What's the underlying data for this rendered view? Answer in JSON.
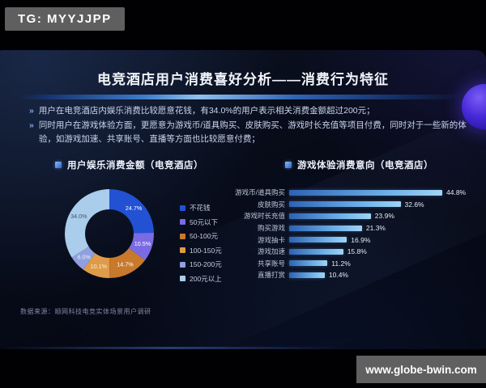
{
  "watermarks": {
    "tg": "TG: MYYJJPP",
    "site": "www.globe-bwin.com"
  },
  "header": {
    "title": "电竞酒店用户消费喜好分析——消费行为特征"
  },
  "bullets": {
    "marker": "»",
    "items": [
      "用户在电竞酒店内娱乐消费比较愿意花钱，有34.0%的用户表示相关消费金额超过200元；",
      "同时用户在游戏体验方面，更愿意为游戏币/道具购买、皮肤购买、游戏时长充值等项目付费，同时对于一些新的体验，如游戏加速、共享账号、直播等方面也比较愿意付费；"
    ]
  },
  "source": "数据来源：顺网科技电竞实体场景用户调研",
  "colors": {
    "accent": "#4a8fe0",
    "badge_bg": "#5f5f5f",
    "planet": "#4629d8"
  },
  "chart_data": [
    {
      "type": "pie",
      "donut": true,
      "title": "用户娱乐消费金额（电竞酒店）",
      "categories": [
        "不花钱",
        "50元以下",
        "50-100元",
        "100-150元",
        "150-200元",
        "200元以上"
      ],
      "values": [
        24.7,
        10.5,
        14.7,
        10.1,
        6.0,
        34.0
      ],
      "labels": [
        "24.7%",
        "10.5%",
        "14.7%",
        "10.1%",
        "6.0%",
        "34.0%"
      ],
      "colors": [
        "#2351d4",
        "#7a6be2",
        "#c8792c",
        "#df9b49",
        "#8f9fdf",
        "#a9cdea"
      ],
      "label_colors": [
        "#ffffff",
        "#ffffff",
        "#ffffff",
        "#f7ecd9",
        "#eef2fa",
        "#45536e"
      ],
      "legend_position": "right"
    },
    {
      "type": "bar",
      "orientation": "horizontal",
      "title": "游戏体验消费意向（电竞酒店）",
      "categories": [
        "游戏币/道具购买",
        "皮肤购买",
        "游戏时长充值",
        "购买游戏",
        "游戏抽卡",
        "游戏加速",
        "共享账号",
        "直播打赏"
      ],
      "values": [
        44.8,
        32.6,
        23.9,
        21.3,
        16.9,
        15.8,
        11.2,
        10.4
      ],
      "labels": [
        "44.8%",
        "32.6%",
        "23.9%",
        "21.3%",
        "16.9%",
        "15.8%",
        "11.2%",
        "10.4%"
      ],
      "xlim": [
        0,
        50
      ],
      "grid": false,
      "bar_gradient": [
        "#2d62b2",
        "#9fd4f4"
      ]
    }
  ]
}
